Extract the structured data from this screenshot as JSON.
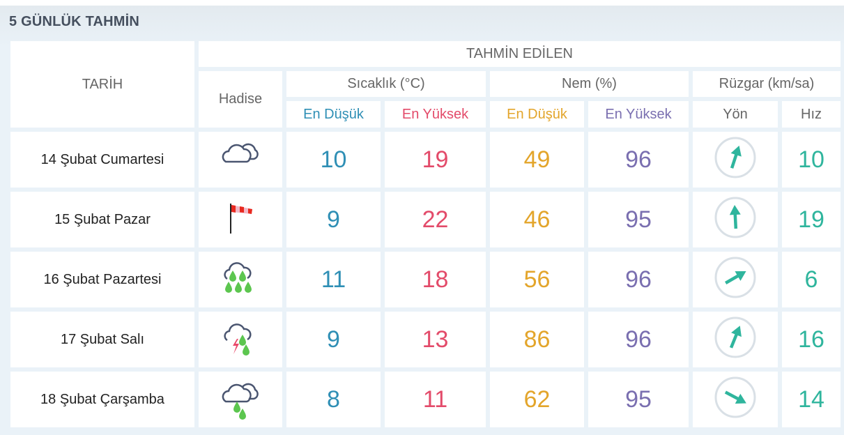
{
  "title": "5 GÜNLÜK TAHMİN",
  "headers": {
    "date": "TARİH",
    "forecast": "TAHMİN EDİLEN",
    "event": "Hadise",
    "temp": "Sıcaklık (°C)",
    "humidity": "Nem (%)",
    "wind": "Rüzgar (km/sa)",
    "temp_low": "En Düşük",
    "temp_high": "En Yüksek",
    "hum_low": "En Düşük",
    "hum_high": "En Yüksek",
    "direction": "Yön",
    "speed": "Hız"
  },
  "colors": {
    "temp_low": "#2f8fb5",
    "temp_high": "#e34b6a",
    "hum_low": "#e3a52b",
    "hum_high": "#7a6fb0",
    "wind": "#2fb59d"
  },
  "rows": [
    {
      "date": "14 Şubat Cumartesi",
      "icon": "partly-cloudy-icon",
      "temp_low": "10",
      "temp_high": "19",
      "hum_low": "49",
      "hum_high": "96",
      "wind_dir_deg": 18,
      "wind_speed": "10"
    },
    {
      "date": "15 Şubat Pazar",
      "icon": "windy-windsock-icon",
      "temp_low": "9",
      "temp_high": "22",
      "hum_low": "46",
      "hum_high": "95",
      "wind_dir_deg": -3,
      "wind_speed": "19"
    },
    {
      "date": "16 Şubat Pazartesi",
      "icon": "heavy-rain-icon",
      "temp_low": "11",
      "temp_high": "18",
      "hum_low": "56",
      "hum_high": "96",
      "wind_dir_deg": 60,
      "wind_speed": "6"
    },
    {
      "date": "17 Şubat Salı",
      "icon": "thunderstorm-rain-icon",
      "temp_low": "9",
      "temp_high": "13",
      "hum_low": "86",
      "hum_high": "96",
      "wind_dir_deg": 22,
      "wind_speed": "16"
    },
    {
      "date": "18 Şubat Çarşamba",
      "icon": "cloudy-light-rain-icon",
      "temp_low": "8",
      "temp_high": "11",
      "hum_low": "62",
      "hum_high": "95",
      "wind_dir_deg": 118,
      "wind_speed": "14"
    }
  ]
}
